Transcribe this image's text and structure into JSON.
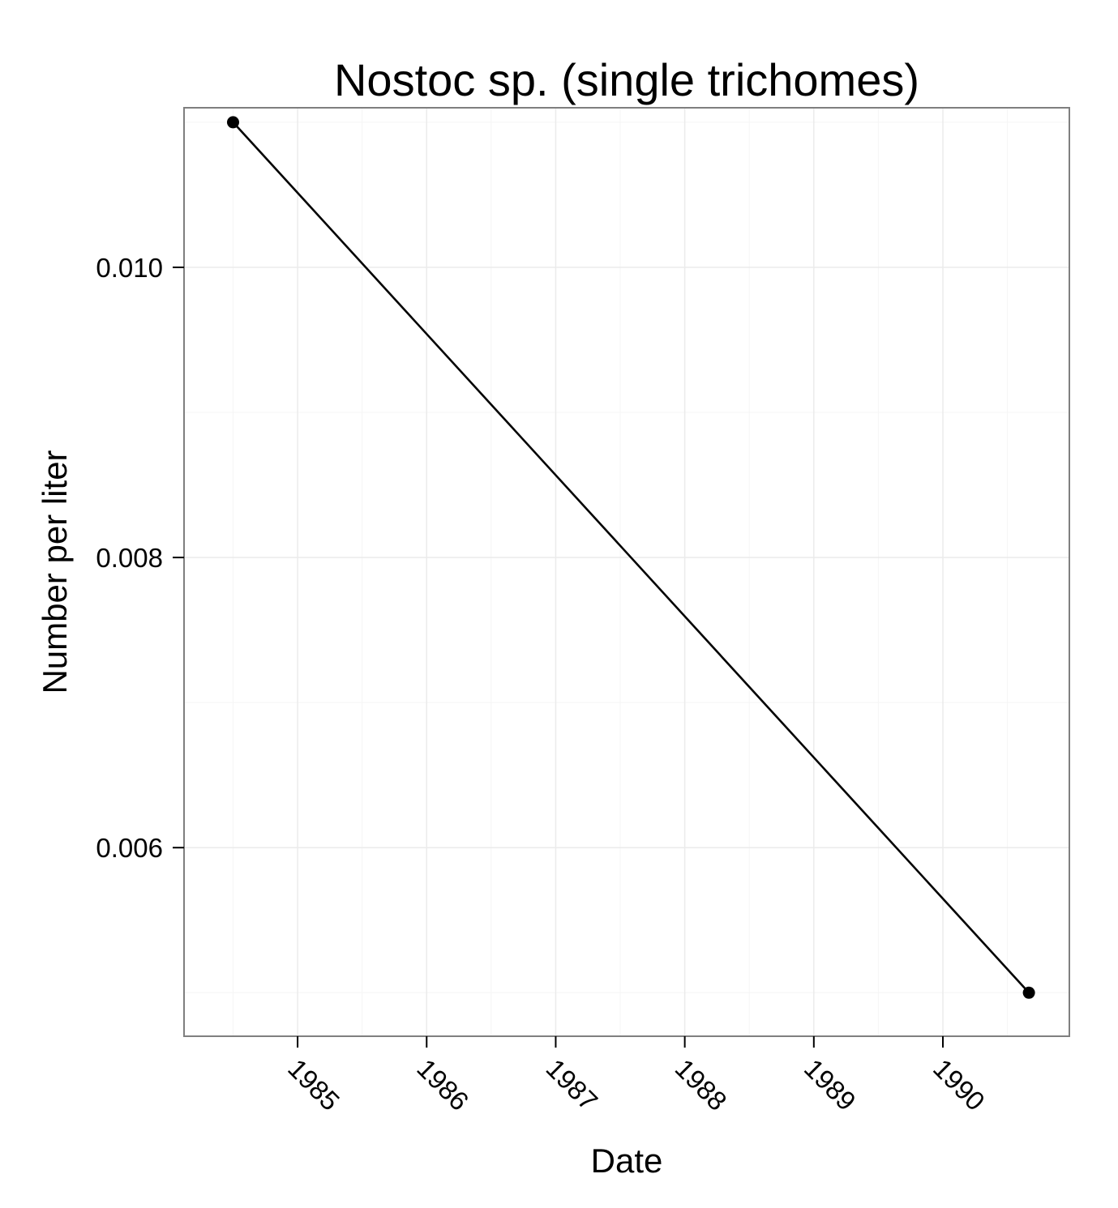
{
  "chart_data": {
    "type": "line",
    "title": "Nostoc sp. (single trichomes)",
    "xlabel": "Date",
    "ylabel": "Number per liter",
    "x_tick_labels": [
      "1985",
      "1986",
      "1987",
      "1988",
      "1989",
      "1990"
    ],
    "x_ticks": [
      1985,
      1986,
      1987,
      1988,
      1989,
      1990
    ],
    "y_tick_labels": [
      "0.006",
      "0.008",
      "0.010"
    ],
    "y_ticks": [
      0.006,
      0.008,
      0.01
    ],
    "xlim": [
      1984.12,
      1990.98
    ],
    "ylim": [
      0.0047,
      0.0111
    ],
    "grid": true,
    "series": [
      {
        "x": [
          "1984-07",
          "1990-09"
        ],
        "y": [
          0.011,
          0.005
        ],
        "color": "#000000"
      }
    ]
  },
  "colors": {
    "panel_background": "#ffffff",
    "panel_border": "#7f7f7f",
    "grid_major": "#ebebeb",
    "grid_minor": "#f5f5f5"
  }
}
